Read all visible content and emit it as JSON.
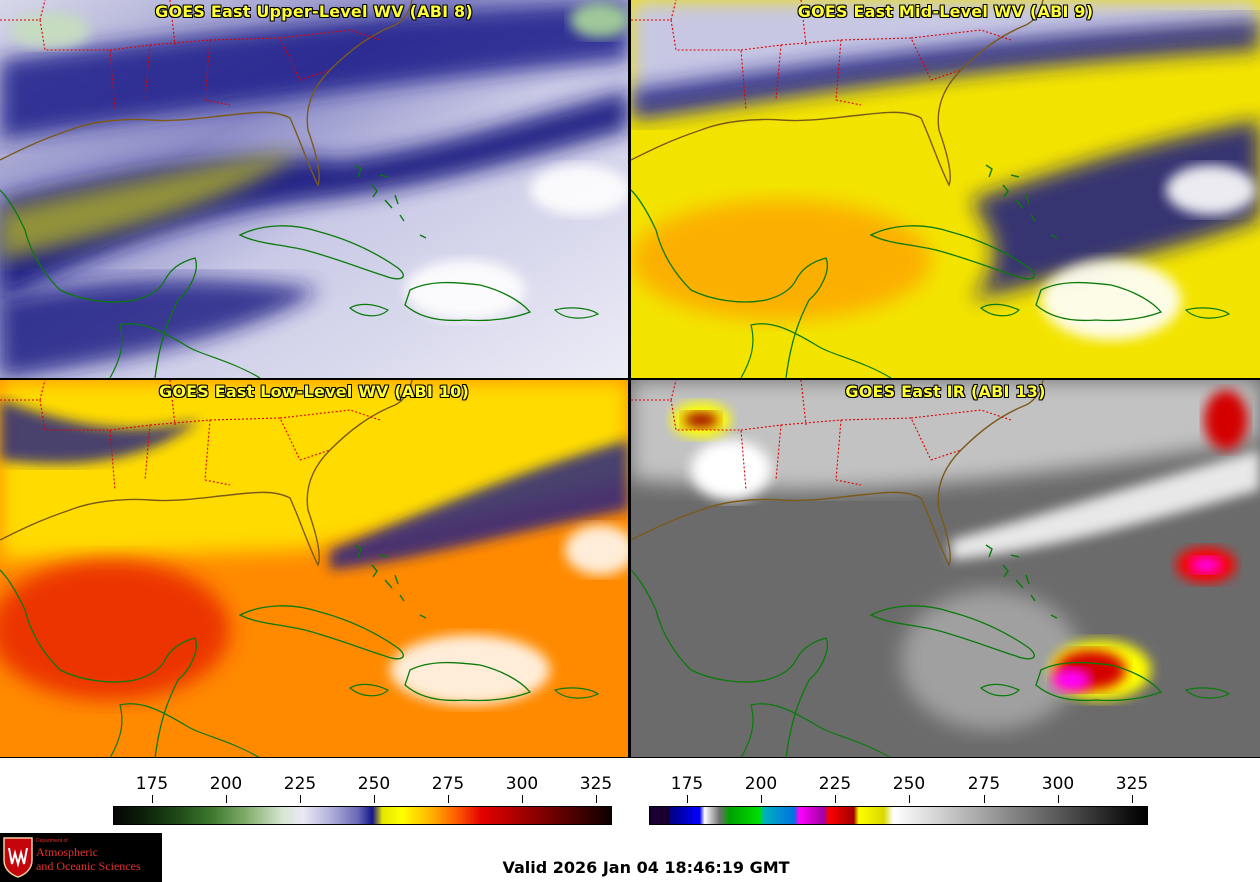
{
  "panels": [
    {
      "id": "upper",
      "title": "GOES East Upper-Level WV (ABI 8)"
    },
    {
      "id": "mid",
      "title": "GOES East Mid-Level WV (ABI 9)"
    },
    {
      "id": "low",
      "title": "GOES East Low-Level WV (ABI 10)"
    },
    {
      "id": "ir",
      "title": "GOES East IR (ABI 13)"
    }
  ],
  "colorbars": {
    "wv": {
      "ticks": [
        "175",
        "200",
        "225",
        "250",
        "275",
        "300",
        "325"
      ]
    },
    "ir": {
      "ticks": [
        "175",
        "200",
        "225",
        "250",
        "275",
        "300",
        "325"
      ]
    }
  },
  "colors": {
    "title_text": "#ffff33",
    "state_borders": "#e00000",
    "coastlines": "#0a7a0a"
  },
  "logo": {
    "department": "Department of",
    "line1": "Atmospheric",
    "line2": "and Oceanic Sciences"
  },
  "valid_time": "Valid 2026 Jan 04 18:46:19 GMT"
}
